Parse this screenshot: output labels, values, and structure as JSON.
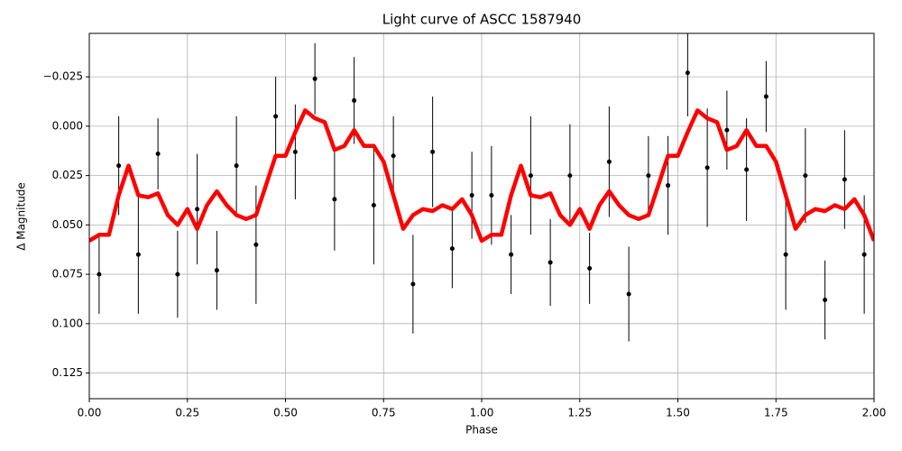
{
  "chart_data": {
    "type": "errorbar",
    "title": "Light curve of ASCC 1587940",
    "xlabel": "Phase",
    "ylabel": "Δ Magnitude",
    "xlim": [
      0,
      2
    ],
    "ylim": [
      -0.047,
      0.138
    ],
    "invert_y": true,
    "grid": true,
    "xticks": [
      {
        "value": 0,
        "label": "0.00"
      },
      {
        "value": 0.25,
        "label": "0.25"
      },
      {
        "value": 0.5,
        "label": "0.50"
      },
      {
        "value": 0.75,
        "label": "0.75"
      },
      {
        "value": 1,
        "label": "1.00"
      },
      {
        "value": 1.25,
        "label": "1.25"
      },
      {
        "value": 1.5,
        "label": "1.50"
      },
      {
        "value": 1.75,
        "label": "1.75"
      },
      {
        "value": 2,
        "label": "2.00"
      }
    ],
    "yticks": [
      {
        "value": -0.025,
        "label": "−0.025"
      },
      {
        "value": 0,
        "label": "0.000"
      },
      {
        "value": 0.025,
        "label": "0.025"
      },
      {
        "value": 0.05,
        "label": "0.050"
      },
      {
        "value": 0.075,
        "label": "0.075"
      },
      {
        "value": 0.1,
        "label": "0.100"
      },
      {
        "value": 0.125,
        "label": "0.125"
      }
    ],
    "points": {
      "color": "#000000",
      "x": [
        0.025,
        0.075,
        0.125,
        0.175,
        0.225,
        0.275,
        0.325,
        0.375,
        0.425,
        0.475,
        0.525,
        0.575,
        0.625,
        0.675,
        0.725,
        0.775,
        0.825,
        0.875,
        0.925,
        0.975,
        1.025,
        1.075,
        1.125,
        1.175,
        1.225,
        1.275,
        1.325,
        1.375,
        1.425,
        1.475,
        1.525,
        1.575,
        1.625,
        1.675,
        1.725,
        1.775,
        1.825,
        1.875,
        1.925,
        1.975
      ],
      "values": [
        0.075,
        0.02,
        0.065,
        0.014,
        0.075,
        0.042,
        0.073,
        0.02,
        0.06,
        -0.005,
        0.013,
        -0.024,
        0.037,
        -0.013,
        0.04,
        0.015,
        0.08,
        0.013,
        0.062,
        0.035,
        0.035,
        0.065,
        0.025,
        0.069,
        0.025,
        0.072,
        0.018,
        0.085,
        0.025,
        0.03,
        -0.027,
        0.021,
        0.002,
        0.022,
        -0.015,
        0.065,
        0.025,
        0.088,
        0.027,
        0.065
      ],
      "errors": [
        0.02,
        0.025,
        0.03,
        0.018,
        0.022,
        0.028,
        0.02,
        0.025,
        0.03,
        0.02,
        0.024,
        0.018,
        0.026,
        0.022,
        0.03,
        0.02,
        0.025,
        0.028,
        0.02,
        0.022,
        0.025,
        0.02,
        0.03,
        0.022,
        0.026,
        0.018,
        0.028,
        0.024,
        0.02,
        0.025,
        0.022,
        0.03,
        0.02,
        0.026,
        0.018,
        0.028,
        0.024,
        0.02,
        0.025,
        0.03
      ]
    },
    "curve": {
      "color": "#ff0000",
      "x": [
        0,
        0.025,
        0.05,
        0.075,
        0.1,
        0.125,
        0.15,
        0.175,
        0.2,
        0.225,
        0.25,
        0.275,
        0.3,
        0.325,
        0.35,
        0.375,
        0.4,
        0.425,
        0.45,
        0.475,
        0.5,
        0.525,
        0.55,
        0.575,
        0.6,
        0.625,
        0.65,
        0.675,
        0.7,
        0.725,
        0.75,
        0.775,
        0.8,
        0.825,
        0.85,
        0.875,
        0.9,
        0.925,
        0.95,
        0.975,
        1,
        1.025,
        1.05,
        1.075,
        1.1,
        1.125,
        1.15,
        1.175,
        1.2,
        1.225,
        1.25,
        1.275,
        1.3,
        1.325,
        1.35,
        1.375,
        1.4,
        1.425,
        1.45,
        1.475,
        1.5,
        1.525,
        1.55,
        1.575,
        1.6,
        1.625,
        1.65,
        1.675,
        1.7,
        1.725,
        1.75,
        1.775,
        1.8,
        1.825,
        1.85,
        1.875,
        1.9,
        1.925,
        1.95,
        1.975,
        2
      ],
      "values": [
        0.058,
        0.055,
        0.055,
        0.035,
        0.02,
        0.035,
        0.036,
        0.034,
        0.045,
        0.05,
        0.042,
        0.052,
        0.04,
        0.033,
        0.04,
        0.045,
        0.047,
        0.045,
        0.03,
        0.015,
        0.015,
        0.003,
        -0.008,
        -0.004,
        -0.002,
        0.012,
        0.01,
        0.002,
        0.01,
        0.01,
        0.018,
        0.035,
        0.052,
        0.045,
        0.042,
        0.043,
        0.04,
        0.042,
        0.037,
        0.045,
        0.058,
        0.055,
        0.055,
        0.035,
        0.02,
        0.035,
        0.036,
        0.034,
        0.045,
        0.05,
        0.042,
        0.052,
        0.04,
        0.033,
        0.04,
        0.045,
        0.047,
        0.045,
        0.03,
        0.015,
        0.015,
        0.003,
        -0.008,
        -0.004,
        -0.002,
        0.012,
        0.01,
        0.002,
        0.01,
        0.01,
        0.018,
        0.035,
        0.052,
        0.045,
        0.042,
        0.043,
        0.04,
        0.042,
        0.037,
        0.045,
        0.058
      ]
    }
  }
}
